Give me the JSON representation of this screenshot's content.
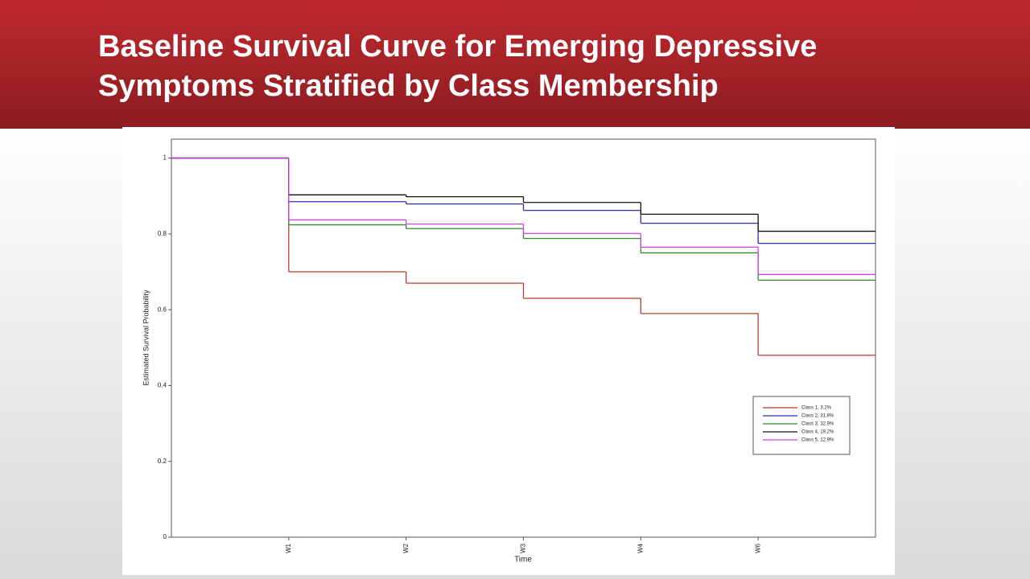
{
  "slide_title": "Baseline Survival Curve for Emerging Depressive Symptoms Stratified by Class Membership",
  "chart_data": {
    "type": "line",
    "step": "post",
    "x_label": "Time",
    "y_label": "Estimated Survival Probability",
    "x": [
      0,
      1,
      2,
      3,
      4,
      5
    ],
    "xlim": [
      0,
      6
    ],
    "xticks": [
      {
        "value": 1,
        "label": "W1"
      },
      {
        "value": 2,
        "label": "W2"
      },
      {
        "value": 3,
        "label": "W3"
      },
      {
        "value": 4,
        "label": "W4"
      },
      {
        "value": 5,
        "label": "W6"
      }
    ],
    "ylim": [
      0,
      1.05
    ],
    "yticks": [
      0,
      0.2,
      0.4,
      0.6,
      0.8,
      1
    ],
    "legend": "lower right",
    "series": [
      {
        "name": "Class 1, 3.2%",
        "color": "#c0392b",
        "values": [
          1,
          0.7,
          0.67,
          0.63,
          0.59,
          0.48
        ]
      },
      {
        "name": "Class 2, 31.8%",
        "color": "#2b2bb0",
        "values": [
          1,
          0.885,
          0.879,
          0.862,
          0.828,
          0.775
        ]
      },
      {
        "name": "Class 3, 32.9%",
        "color": "#2e8b2e",
        "values": [
          1,
          0.824,
          0.814,
          0.788,
          0.75,
          0.678
        ]
      },
      {
        "name": "Class 4, 19.2%",
        "color": "#111111",
        "values": [
          1,
          0.903,
          0.898,
          0.883,
          0.852,
          0.807
        ]
      },
      {
        "name": "Class 5, 12.9%",
        "color": "#cc44dd",
        "values": [
          1,
          0.837,
          0.826,
          0.801,
          0.765,
          0.693
        ]
      }
    ]
  }
}
